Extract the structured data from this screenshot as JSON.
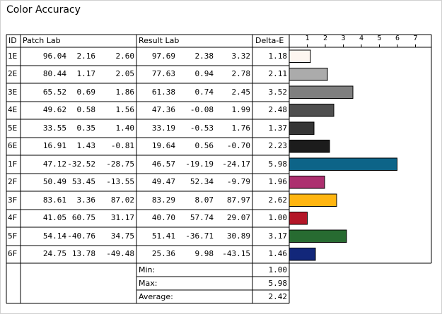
{
  "title": "Color Accuracy",
  "headers": {
    "id": "ID",
    "patch": "Patch Lab",
    "result": "Result Lab",
    "delta": "Delta-E"
  },
  "chart_data": {
    "type": "bar",
    "orientation": "horizontal",
    "title": "Color Accuracy",
    "xlabel": "",
    "ylabel": "",
    "x_ticks": [
      "1",
      "2",
      "3",
      "4",
      "5",
      "6",
      "7"
    ],
    "xlim": [
      0,
      7.9
    ],
    "grid": false,
    "categories": [
      "1E",
      "2E",
      "3E",
      "4E",
      "5E",
      "6E",
      "1F",
      "2F",
      "3F",
      "4F",
      "5F",
      "6F"
    ],
    "patch_lab": [
      [
        "96.04",
        "2.16",
        "2.60"
      ],
      [
        "80.44",
        "1.17",
        "2.05"
      ],
      [
        "65.52",
        "0.69",
        "1.86"
      ],
      [
        "49.62",
        "0.58",
        "1.56"
      ],
      [
        "33.55",
        "0.35",
        "1.40"
      ],
      [
        "16.91",
        "1.43",
        "-0.81"
      ],
      [
        "47.12",
        "-32.52",
        "-28.75"
      ],
      [
        "50.49",
        "53.45",
        "-13.55"
      ],
      [
        "83.61",
        "3.36",
        "87.02"
      ],
      [
        "41.05",
        "60.75",
        "31.17"
      ],
      [
        "54.14",
        "-40.76",
        "34.75"
      ],
      [
        "24.75",
        "13.78",
        "-49.48"
      ]
    ],
    "result_lab": [
      [
        "97.69",
        "2.38",
        "3.32"
      ],
      [
        "77.63",
        "0.94",
        "2.78"
      ],
      [
        "61.38",
        "0.74",
        "2.45"
      ],
      [
        "47.36",
        "-0.08",
        "1.99"
      ],
      [
        "33.19",
        "-0.53",
        "1.76"
      ],
      [
        "19.64",
        "0.56",
        "-0.70"
      ],
      [
        "46.57",
        "-19.19",
        "-24.17"
      ],
      [
        "49.47",
        "52.34",
        "-9.79"
      ],
      [
        "83.29",
        "8.07",
        "87.97"
      ],
      [
        "40.70",
        "57.74",
        "29.07"
      ],
      [
        "51.41",
        "-36.71",
        "30.89"
      ],
      [
        "25.36",
        "9.98",
        "-43.15"
      ]
    ],
    "delta_labels": [
      "1.18",
      "2.11",
      "3.52",
      "2.48",
      "1.37",
      "2.23",
      "5.98",
      "1.96",
      "2.62",
      "1.00",
      "3.17",
      "1.46"
    ],
    "values": [
      1.18,
      2.11,
      3.52,
      2.48,
      1.37,
      2.23,
      5.98,
      1.96,
      2.62,
      1.0,
      3.17,
      1.46
    ],
    "colors": [
      "#fdf6f0",
      "#ababab",
      "#7f7f7f",
      "#4f4f4f",
      "#353535",
      "#1c1c1c",
      "#0d6488",
      "#ad2f6f",
      "#ffb511",
      "#b41628",
      "#276b31",
      "#12277a"
    ],
    "summary": [
      {
        "label": "Min:",
        "value": "1.00"
      },
      {
        "label": "Max:",
        "value": "5.98"
      },
      {
        "label": "Average:",
        "value": "2.42"
      }
    ]
  }
}
